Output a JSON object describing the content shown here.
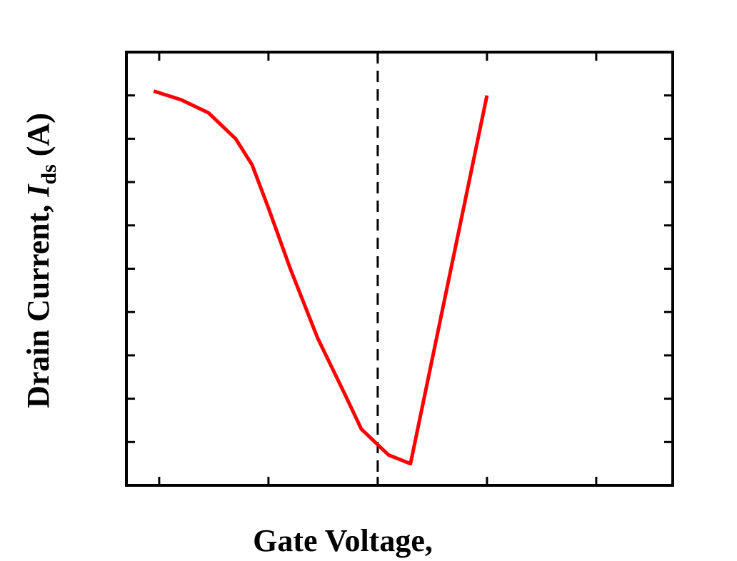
{
  "chart_data": {
    "type": "line",
    "xlabel": "Gate Voltage,",
    "ylabel": {
      "text": "Drain Current, ",
      "italic": "I",
      "subscript": "ds",
      "unit": " (A)"
    },
    "xlim": [
      0,
      10
    ],
    "ylim": [
      0,
      10
    ],
    "x_ticks": [
      0.6,
      2.6,
      4.6,
      6.6,
      8.6
    ],
    "y_ticks": [
      1,
      2,
      3,
      4,
      5,
      6,
      7,
      8,
      9
    ],
    "reference_line": {
      "x": 4.6,
      "style": "dashed",
      "color": "#000000"
    },
    "grid": false,
    "series": [
      {
        "color": "#ff0000",
        "dash": false,
        "points": [
          [
            0.5,
            9.1
          ],
          [
            1.0,
            8.9
          ],
          [
            1.5,
            8.6
          ],
          [
            2.0,
            8.0
          ],
          [
            2.3,
            7.4
          ],
          [
            2.6,
            6.4
          ],
          [
            3.0,
            5.0
          ],
          [
            3.5,
            3.4
          ],
          [
            4.0,
            2.1
          ],
          [
            4.3,
            1.3
          ],
          [
            4.8,
            0.7
          ],
          [
            5.2,
            0.5
          ],
          [
            6.6,
            9.0
          ]
        ],
        "note": ""
      },
      {
        "color": "#000000",
        "dash": false,
        "points": []
      },
      {
        "color": "#0000ff",
        "dash": false,
        "points": []
      },
      {
        "color": "#000000",
        "dash": true,
        "points": []
      },
      {
        "color": "#0000ff",
        "dash": true,
        "points": []
      },
      {
        "color": "#ff0000",
        "dash": true,
        "points": []
      }
    ]
  }
}
